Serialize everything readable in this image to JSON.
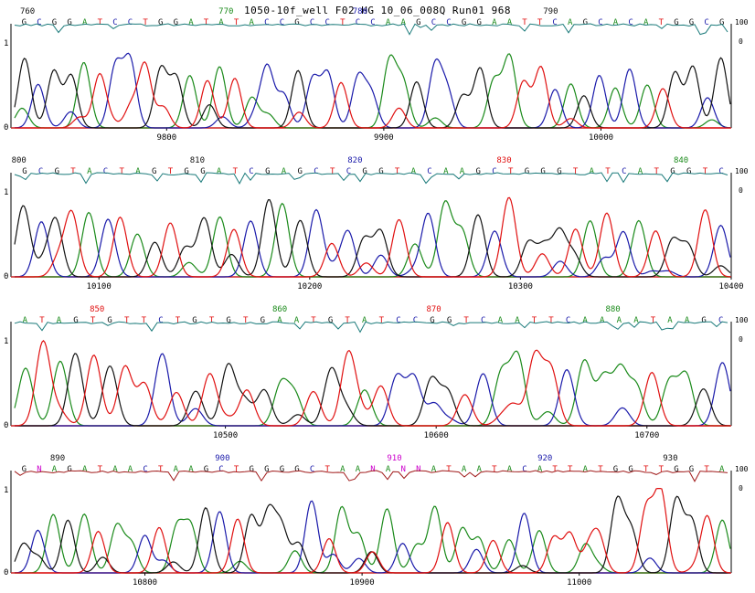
{
  "window": {
    "title": "1050-10f_well F02 HG 10_06_008Q Run01 968"
  },
  "colors": {
    "A": "#1a8a1a",
    "C": "#1a1aaa",
    "G": "#111111",
    "T": "#e01010",
    "N": "#cc00cc",
    "quality": "#1a7a7a",
    "quality_alt": "#a01a1a",
    "axis": "#cc2222"
  },
  "chart_data": [
    {
      "type": "line",
      "title": "",
      "y_left_label": "1",
      "y_left_zero": "0",
      "y_right_top": "100",
      "y_right_zero": "0",
      "xlim": [
        9730,
        10060
      ],
      "x_ticks": [
        9800,
        9900,
        10000
      ],
      "base_positions": [
        {
          "label": "760",
          "color": "G",
          "frac": 0.018
        },
        {
          "label": "770",
          "color": "A",
          "frac": 0.295
        },
        {
          "label": "780",
          "color": "C",
          "frac": 0.482
        },
        {
          "label": "790",
          "color": "G",
          "frac": 0.748
        }
      ],
      "bases": "GCGGATCCTGGATATACCGCCTCCAAGCCGGAATTCAGCACATGGCG",
      "quality_color": "quality",
      "series_seed": 11
    },
    {
      "type": "line",
      "title": "",
      "y_left_label": "1",
      "y_left_zero": "0",
      "y_right_top": "100",
      "y_right_zero": "0",
      "xlim": [
        10060,
        10400
      ],
      "x_ticks": [
        10100,
        10200,
        10300,
        10400
      ],
      "base_positions": [
        {
          "label": "800",
          "color": "G",
          "frac": 0.006
        },
        {
          "label": "810",
          "color": "G",
          "frac": 0.255
        },
        {
          "label": "820",
          "color": "C",
          "frac": 0.475
        },
        {
          "label": "830",
          "color": "T",
          "frac": 0.683
        },
        {
          "label": "840",
          "color": "A",
          "frac": 0.93
        }
      ],
      "bases": "GCGTACTAGTGGATCGAGCTCGGTACAAGCTGGGTATCATGGTC",
      "quality_color": "quality",
      "series_seed": 23
    },
    {
      "type": "line",
      "title": "",
      "y_left_label": "1",
      "y_left_zero": "0",
      "y_right_top": "100",
      "y_right_zero": "0",
      "xlim": [
        10400,
        10740
      ],
      "x_ticks": [
        10500,
        10600,
        10700
      ],
      "base_positions": [
        {
          "label": "850",
          "color": "T",
          "frac": 0.115
        },
        {
          "label": "860",
          "color": "A",
          "frac": 0.37
        },
        {
          "label": "870",
          "color": "T",
          "frac": 0.585
        },
        {
          "label": "880",
          "color": "A",
          "frac": 0.835
        }
      ],
      "bases": "ATAGTGTTCTGTGTGAATGTATCCGGTCAATTCAAAATAAGC",
      "quality_color": "quality",
      "series_seed": 37
    },
    {
      "type": "line",
      "title": "",
      "y_left_label": "1",
      "y_left_zero": "0",
      "y_right_top": "100",
      "y_right_zero": "0",
      "xlim": [
        10740,
        11070
      ],
      "x_ticks": [
        10800,
        10900,
        11000
      ],
      "base_positions": [
        {
          "label": "890",
          "color": "G",
          "frac": 0.06
        },
        {
          "label": "900",
          "color": "C",
          "frac": 0.29
        },
        {
          "label": "910",
          "color": "N",
          "frac": 0.53
        },
        {
          "label": "920",
          "color": "C",
          "frac": 0.74
        },
        {
          "label": "930",
          "color": "G",
          "frac": 0.915
        }
      ],
      "bases": "GNAGATAACTAAGCTGGGGCTAANANNATAATACATTATGGTTGGTA",
      "quality_color": "quality_alt",
      "series_seed": 53
    }
  ]
}
